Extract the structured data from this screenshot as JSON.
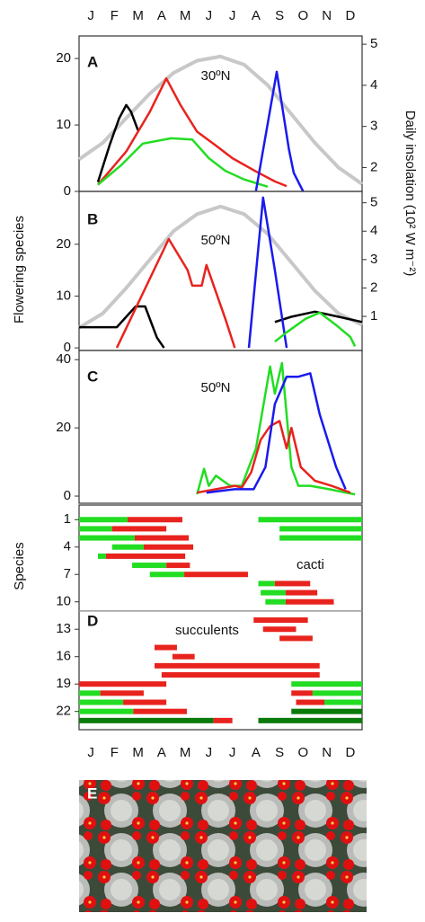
{
  "months": [
    "J",
    "F",
    "M",
    "A",
    "M",
    "J",
    "J",
    "A",
    "S",
    "O",
    "N",
    "D"
  ],
  "flowering_label": "Flowering species",
  "insolation_label": "Daily insolation (10² W m⁻²)",
  "species_label": "Species",
  "photo": {
    "label": "E"
  },
  "chart_data": [
    {
      "type": "line",
      "label": "A",
      "annotation": "30ºN",
      "xlim": [
        0,
        12
      ],
      "ylim": [
        0,
        23.4
      ],
      "yticks": [
        0,
        10,
        20
      ],
      "y2lim": [
        1.42,
        5.2
      ],
      "y2ticks": [
        2,
        3,
        4,
        5
      ],
      "series": [
        {
          "color": "#c8c8c8",
          "axis": "y2",
          "x": [
            0,
            1,
            2,
            3,
            4,
            5,
            6,
            7,
            8,
            9,
            10,
            11,
            12
          ],
          "values": [
            2.2,
            2.6,
            3.2,
            3.8,
            4.3,
            4.6,
            4.7,
            4.5,
            4.0,
            3.3,
            2.6,
            2.0,
            1.6
          ]
        },
        {
          "color": "#000000",
          "x": [
            0.8,
            1.3,
            1.7,
            2.0,
            2.2,
            2.5
          ],
          "values": [
            1.4,
            7,
            11,
            13,
            12,
            9.2
          ]
        },
        {
          "color": "#e8231e",
          "x": [
            0.8,
            2,
            3,
            3.7,
            4.3,
            5,
            5.8,
            6.5,
            7.5,
            8.3,
            8.8
          ],
          "values": [
            1,
            6,
            12,
            17,
            13,
            9,
            6.9,
            5,
            3,
            1.5,
            0.8
          ]
        },
        {
          "color": "#22dd22",
          "x": [
            0.8,
            1.8,
            2.7,
            3.9,
            4.8,
            5.5,
            6.2,
            7,
            8
          ],
          "values": [
            1,
            4,
            7.2,
            8,
            7.8,
            5,
            3.1,
            1.8,
            0.7
          ]
        },
        {
          "color": "#1a1aee",
          "x": [
            7.5,
            8.38,
            8.9,
            9.1,
            9.5
          ],
          "values": [
            0.1,
            18,
            6.3,
            2.8,
            0
          ]
        }
      ]
    },
    {
      "type": "line",
      "label": "B",
      "annotation": "50ºN",
      "xlim": [
        0,
        12
      ],
      "ylim": [
        -0.5,
        30.2
      ],
      "yticks": [
        0,
        10,
        20
      ],
      "y2lim": [
        -0.2,
        5.4
      ],
      "y2ticks": [
        1,
        2,
        3,
        4,
        5
      ],
      "series": [
        {
          "color": "#c8c8c8",
          "axis": "y2",
          "x": [
            0,
            1,
            2,
            3,
            4,
            5,
            6,
            7,
            8,
            9,
            10,
            11,
            12
          ],
          "values": [
            0.6,
            1.1,
            2.0,
            3.0,
            4.0,
            4.6,
            4.87,
            4.6,
            3.9,
            2.9,
            1.9,
            1.1,
            0.7
          ]
        },
        {
          "color": "#000000",
          "x": [
            0,
            1.6,
            2,
            2.4,
            2.8,
            3.3,
            3.6,
            7.5,
            8.3,
            9,
            10,
            11,
            12
          ],
          "values": [
            4,
            4,
            6,
            8,
            8,
            2,
            0,
            null,
            5,
            6,
            7,
            6,
            5
          ]
        },
        {
          "color": "#e8231e",
          "x": [
            1.6,
            3.8,
            4.6,
            4.8,
            5.2,
            5.4,
            6.2,
            6.6
          ],
          "values": [
            0,
            21,
            15,
            12,
            12,
            16,
            5.6,
            0
          ]
        },
        {
          "color": "#1a1aee",
          "x": [
            7.2,
            7.8,
            8.3,
            8.8
          ],
          "values": [
            0,
            29,
            15,
            0
          ]
        },
        {
          "color": "#22dd22",
          "x": [
            8.3,
            8.8,
            9.6,
            10.2,
            10.9,
            11.5,
            11.7
          ],
          "values": [
            1.2,
            3,
            5.6,
            6.8,
            4.4,
            2.1,
            0.3
          ]
        }
      ]
    },
    {
      "type": "line",
      "label": "C",
      "annotation": "50ºN",
      "xlim": [
        0,
        12
      ],
      "ylim": [
        -2.1,
        42.7
      ],
      "yticks": [
        0,
        20,
        40
      ],
      "series": [
        {
          "color": "#22dd22",
          "x": [
            5.0,
            5.3,
            5.5,
            5.8,
            6.4,
            6.9,
            7.5,
            8.1,
            8.3,
            8.6,
            9.0,
            9.3,
            9.8,
            10.6,
            11.3,
            11.7
          ],
          "values": [
            0.5,
            8,
            3,
            6,
            3,
            3,
            14,
            38,
            30,
            39,
            8.5,
            3,
            3,
            2,
            1,
            0.5
          ]
        },
        {
          "color": "#e8231e",
          "x": [
            5,
            5.8,
            6.6,
            6.9,
            7.3,
            7.7,
            8.1,
            8.5,
            8.8,
            9.0,
            9.4,
            10,
            10.7,
            11.5
          ],
          "values": [
            1,
            2,
            3,
            2.5,
            7,
            16.5,
            20.5,
            22,
            14,
            20,
            8.5,
            4.5,
            3,
            1
          ]
        },
        {
          "color": "#1a1aee",
          "x": [
            5.4,
            6.6,
            7.4,
            7.9,
            8.3,
            8.8,
            9.3,
            9.8,
            10.2,
            10.9,
            11.3
          ],
          "values": [
            1,
            2,
            2,
            8.5,
            27,
            35,
            35,
            36,
            24,
            8.5,
            2
          ]
        }
      ]
    },
    {
      "type": "range-bar",
      "label": "D",
      "xlim": [
        0,
        12
      ],
      "ylim": [
        -0.6,
        24
      ],
      "y_inverted": true,
      "yticks": [
        1,
        4,
        7,
        10,
        13,
        16,
        19,
        22
      ],
      "divider": 11,
      "annotations": [
        {
          "text": "cacti",
          "row": 6
        },
        {
          "text": "succulents",
          "row": 13
        }
      ],
      "bars": [
        {
          "row": 1,
          "start": 0,
          "end": 2.06,
          "color": "#22dd22"
        },
        {
          "row": 1,
          "start": 2.06,
          "end": 4.38,
          "color": "#e8231e"
        },
        {
          "row": 1,
          "start": 7.6,
          "end": 12,
          "color": "#22dd22"
        },
        {
          "row": 2,
          "start": 0,
          "end": 1.4,
          "color": "#22dd22"
        },
        {
          "row": 2,
          "start": 1.4,
          "end": 3.7,
          "color": "#e8231e"
        },
        {
          "row": 2,
          "start": 8.5,
          "end": 12,
          "color": "#22dd22"
        },
        {
          "row": 3,
          "start": 0,
          "end": 2.36,
          "color": "#22dd22"
        },
        {
          "row": 3,
          "start": 2.36,
          "end": 4.65,
          "color": "#e8231e"
        },
        {
          "row": 3,
          "start": 8.5,
          "end": 12,
          "color": "#22dd22"
        },
        {
          "row": 4,
          "start": 1.4,
          "end": 2.74,
          "color": "#22dd22"
        },
        {
          "row": 4,
          "start": 2.74,
          "end": 4.84,
          "color": "#e8231e"
        },
        {
          "row": 5,
          "start": 0.8,
          "end": 1.14,
          "color": "#22dd22"
        },
        {
          "row": 5,
          "start": 1.14,
          "end": 4.5,
          "color": "#e8231e"
        },
        {
          "row": 6,
          "start": 2.25,
          "end": 3.7,
          "color": "#22dd22"
        },
        {
          "row": 6,
          "start": 3.7,
          "end": 4.7,
          "color": "#e8231e"
        },
        {
          "row": 7,
          "start": 3.0,
          "end": 4.46,
          "color": "#22dd22"
        },
        {
          "row": 7,
          "start": 4.46,
          "end": 7.16,
          "color": "#e8231e"
        },
        {
          "row": 8,
          "start": 7.6,
          "end": 8.3,
          "color": "#22dd22"
        },
        {
          "row": 8,
          "start": 8.3,
          "end": 9.8,
          "color": "#e8231e"
        },
        {
          "row": 9,
          "start": 7.7,
          "end": 8.76,
          "color": "#22dd22"
        },
        {
          "row": 9,
          "start": 8.76,
          "end": 10.1,
          "color": "#e8231e"
        },
        {
          "row": 10,
          "start": 7.9,
          "end": 8.76,
          "color": "#22dd22"
        },
        {
          "row": 10,
          "start": 8.76,
          "end": 10.8,
          "color": "#e8231e"
        },
        {
          "row": 12,
          "start": 7.4,
          "end": 9.7,
          "color": "#e8231e"
        },
        {
          "row": 13,
          "start": 7.8,
          "end": 9.2,
          "color": "#e8231e"
        },
        {
          "row": 14,
          "start": 8.5,
          "end": 9.9,
          "color": "#e8231e"
        },
        {
          "row": 15,
          "start": 3.2,
          "end": 4.15,
          "color": "#e8231e"
        },
        {
          "row": 16,
          "start": 3.96,
          "end": 4.9,
          "color": "#e8231e"
        },
        {
          "row": 17,
          "start": 3.2,
          "end": 10.2,
          "color": "#e8231e"
        },
        {
          "row": 18,
          "start": 3.5,
          "end": 10.2,
          "color": "#e8231e"
        },
        {
          "row": 19,
          "start": 0,
          "end": 3.7,
          "color": "#e8231e"
        },
        {
          "row": 19,
          "start": 9.0,
          "end": 12,
          "color": "#22dd22"
        },
        {
          "row": 20,
          "start": 0,
          "end": 0.9,
          "color": "#22dd22"
        },
        {
          "row": 20,
          "start": 0.9,
          "end": 2.74,
          "color": "#e8231e"
        },
        {
          "row": 20,
          "start": 9.0,
          "end": 9.9,
          "color": "#e8231e"
        },
        {
          "row": 20,
          "start": 9.9,
          "end": 12,
          "color": "#22dd22"
        },
        {
          "row": 21,
          "start": 0,
          "end": 1.87,
          "color": "#22dd22"
        },
        {
          "row": 21,
          "start": 1.87,
          "end": 3.7,
          "color": "#e8231e"
        },
        {
          "row": 21,
          "start": 9.2,
          "end": 10.4,
          "color": "#e8231e"
        },
        {
          "row": 21,
          "start": 10.4,
          "end": 12,
          "color": "#22dd22"
        },
        {
          "row": 22,
          "start": 0,
          "end": 2.3,
          "color": "#22dd22"
        },
        {
          "row": 22,
          "start": 2.3,
          "end": 4.57,
          "color": "#e8231e"
        },
        {
          "row": 22,
          "start": 9.0,
          "end": 12,
          "color": "#0a7a0a"
        },
        {
          "row": 23,
          "start": 0,
          "end": 5.7,
          "color": "#0a7a0a"
        },
        {
          "row": 23,
          "start": 5.7,
          "end": 6.5,
          "color": "#e8231e"
        },
        {
          "row": 23,
          "start": 7.6,
          "end": 12,
          "color": "#0a7a0a"
        }
      ]
    }
  ]
}
